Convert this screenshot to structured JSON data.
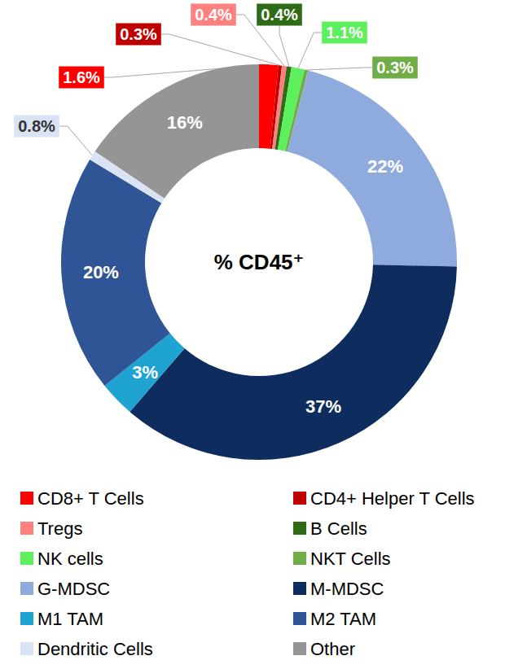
{
  "chart_data": {
    "type": "pie",
    "title": "% CD45⁺",
    "categories": [
      "CD8+ T Cells",
      "CD4+ Helper T Cells",
      "Tregs",
      "B Cells",
      "NK cells",
      "NKT Cells",
      "G-MDSC",
      "M-MDSC",
      "M1 TAM",
      "M2 TAM",
      "Dendritic Cells",
      "Other"
    ],
    "values": [
      1.6,
      0.3,
      0.4,
      0.4,
      1.1,
      0.3,
      22,
      37,
      3,
      20,
      0.8,
      16
    ],
    "value_labels": [
      "1.6%",
      "0.3%",
      "0.4%",
      "0.4%",
      "1.1%",
      "0.3%",
      "22%",
      "37%",
      "3%",
      "20%",
      "0.8%",
      "16%"
    ],
    "colors": [
      "#ff0000",
      "#c00000",
      "#ff8080",
      "#2e6b17",
      "#5cf05c",
      "#70ad47",
      "#8faadc",
      "#0e2d5e",
      "#1fa3d1",
      "#2f5597",
      "#dae3f3",
      "#959595"
    ],
    "data_labels": true,
    "legend": "bottom"
  }
}
